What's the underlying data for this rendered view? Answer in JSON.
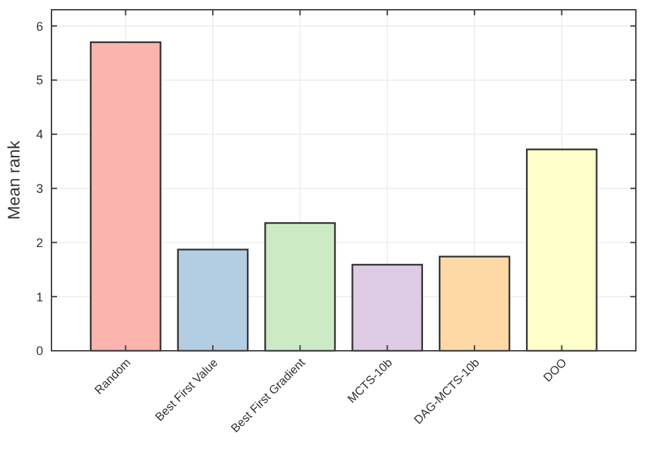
{
  "chart_data": {
    "type": "bar",
    "ylabel": "Mean rank",
    "categories": [
      "Random",
      "Best First Value",
      "Best First Gradient",
      "MCTS-10b",
      "DAG-MCTS-10b",
      "DOO"
    ],
    "values": [
      5.7,
      1.87,
      2.36,
      1.59,
      1.74,
      3.72
    ],
    "colors": [
      "#fbb4ae",
      "#b3cde3",
      "#ccebc5",
      "#decbe4",
      "#fed9a6",
      "#ffffcc"
    ],
    "ylim": [
      0,
      6.3
    ],
    "yticks": [
      0,
      1,
      2,
      3,
      4,
      5,
      6
    ],
    "grid": true
  }
}
